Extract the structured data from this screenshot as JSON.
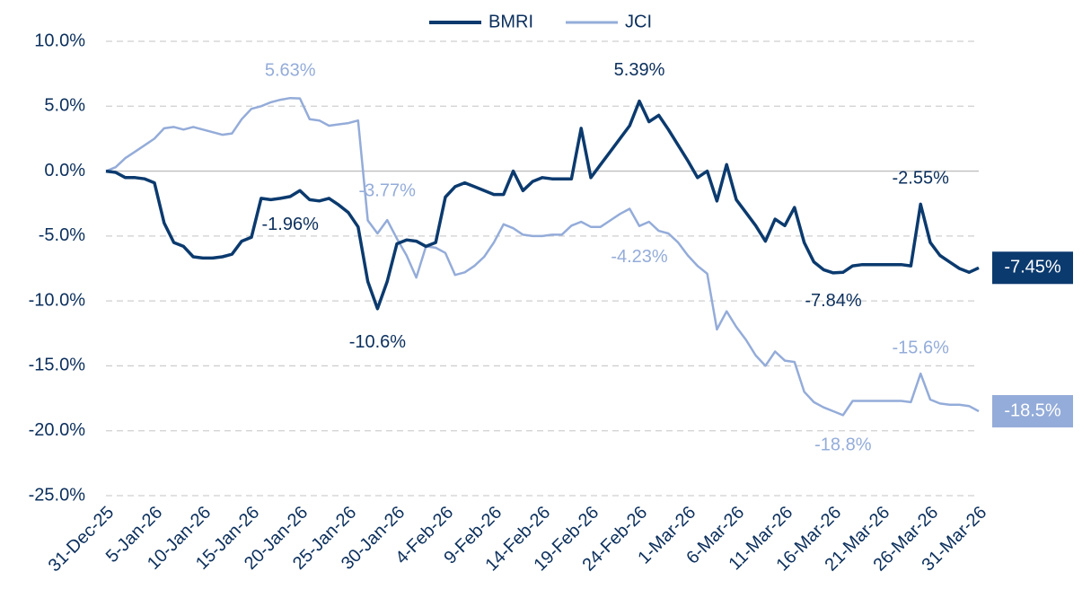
{
  "chart_data": {
    "type": "line",
    "categories": [
      "31-Dec-25",
      null,
      null,
      null,
      null,
      "5-Jan-26",
      null,
      null,
      null,
      null,
      "10-Jan-26",
      null,
      null,
      null,
      null,
      "15-Jan-26",
      null,
      null,
      null,
      null,
      "20-Jan-26",
      null,
      null,
      null,
      null,
      "25-Jan-26",
      null,
      null,
      null,
      null,
      "30-Jan-26",
      null,
      null,
      null,
      null,
      "4-Feb-26",
      null,
      null,
      null,
      null,
      "9-Feb-26",
      null,
      null,
      null,
      null,
      "14-Feb-26",
      null,
      null,
      null,
      null,
      "19-Feb-26",
      null,
      null,
      null,
      null,
      "24-Feb-26",
      null,
      null,
      null,
      null,
      "1-Mar-26",
      null,
      null,
      null,
      null,
      "6-Mar-26",
      null,
      null,
      null,
      null,
      "11-Mar-26",
      null,
      null,
      null,
      null,
      "16-Mar-26",
      null,
      null,
      null,
      null,
      "21-Mar-26",
      null,
      null,
      null,
      null,
      "26-Mar-26",
      null,
      null,
      null,
      null,
      "31-Mar-26"
    ],
    "series": [
      {
        "name": "BMRI",
        "color": "#0b3a6e",
        "values": [
          0,
          -0.1,
          -0.5,
          -0.5,
          -0.6,
          -0.9,
          -4.0,
          -5.5,
          -5.8,
          -6.6,
          -6.7,
          -6.7,
          -6.6,
          -6.4,
          -5.4,
          -5.1,
          -2.1,
          -2.2,
          -2.1,
          -1.96,
          -1.5,
          -2.2,
          -2.3,
          -2.1,
          -2.6,
          -3.2,
          -4.3,
          -8.5,
          -10.6,
          -8.5,
          -5.6,
          -5.3,
          -5.4,
          -5.8,
          -5.5,
          -2.0,
          -1.2,
          -0.9,
          -1.2,
          -1.5,
          -1.8,
          -1.8,
          0.0,
          -1.5,
          -0.8,
          -0.5,
          -0.6,
          -0.6,
          -0.6,
          3.3,
          -0.5,
          0.5,
          1.5,
          2.5,
          3.5,
          5.39,
          3.8,
          4.3,
          3.2,
          2.0,
          0.8,
          -0.5,
          0.0,
          -2.3,
          0.5,
          -2.2,
          -3.2,
          -4.2,
          -5.4,
          -3.7,
          -4.2,
          -2.8,
          -5.5,
          -7.0,
          -7.6,
          -7.84,
          -7.8,
          -7.3,
          -7.2,
          -7.2,
          -7.2,
          -7.2,
          -7.2,
          -7.3,
          -2.55,
          -5.5,
          -6.5,
          -7.0,
          -7.5,
          -7.8,
          -7.45
        ],
        "value_labels": [
          null,
          null,
          null,
          null,
          null,
          null,
          null,
          null,
          null,
          null,
          null,
          null,
          null,
          null,
          null,
          null,
          null,
          null,
          null,
          "-1.96%",
          null,
          null,
          null,
          null,
          null,
          null,
          null,
          null,
          "-10.6%",
          null,
          null,
          null,
          null,
          null,
          null,
          null,
          null,
          null,
          null,
          null,
          null,
          null,
          null,
          null,
          null,
          null,
          null,
          null,
          null,
          null,
          null,
          null,
          null,
          null,
          null,
          "5.39%",
          null,
          null,
          null,
          null,
          null,
          null,
          null,
          null,
          null,
          null,
          null,
          null,
          null,
          null,
          null,
          null,
          null,
          null,
          null,
          "-7.84%",
          null,
          null,
          null,
          null,
          null,
          null,
          null,
          null,
          "-2.55%",
          null,
          null,
          null,
          null,
          null,
          "-7.45%"
        ]
      },
      {
        "name": "JCI",
        "color": "#94acd9",
        "values": [
          0,
          0.3,
          1.0,
          1.5,
          2.0,
          2.5,
          3.3,
          3.4,
          3.2,
          3.4,
          3.2,
          3.0,
          2.8,
          2.9,
          4.0,
          4.8,
          5.0,
          5.3,
          5.5,
          5.63,
          5.6,
          4.0,
          3.9,
          3.5,
          3.6,
          3.7,
          3.9,
          -3.8,
          -4.8,
          -3.77,
          -5.2,
          -6.5,
          -8.2,
          -5.8,
          -5.9,
          -6.3,
          -8.0,
          -7.8,
          -7.3,
          -6.6,
          -5.5,
          -4.1,
          -4.4,
          -4.9,
          -5.0,
          -5.0,
          -4.9,
          -4.9,
          -4.2,
          -3.9,
          -4.3,
          -4.3,
          -3.8,
          -3.3,
          -2.9,
          -4.23,
          -3.9,
          -4.6,
          -4.8,
          -5.5,
          -6.5,
          -7.3,
          -7.9,
          -12.2,
          -10.8,
          -12.0,
          -13.0,
          -14.2,
          -15.0,
          -13.9,
          -14.6,
          -14.7,
          -17.0,
          -17.8,
          -18.2,
          -18.5,
          -18.8,
          -17.7,
          -17.7,
          -17.7,
          -17.7,
          -17.7,
          -17.7,
          -17.8,
          -15.6,
          -17.6,
          -17.9,
          -18.0,
          -18.0,
          -18.1,
          -18.5
        ],
        "value_labels": [
          null,
          null,
          null,
          null,
          null,
          null,
          null,
          null,
          null,
          null,
          null,
          null,
          null,
          null,
          null,
          null,
          null,
          null,
          null,
          "5.63%",
          null,
          null,
          null,
          null,
          null,
          null,
          null,
          null,
          null,
          "-3.77%",
          null,
          null,
          null,
          null,
          null,
          null,
          null,
          null,
          null,
          null,
          null,
          null,
          null,
          null,
          null,
          null,
          null,
          null,
          null,
          null,
          null,
          null,
          null,
          null,
          null,
          "-4.23%",
          null,
          null,
          null,
          null,
          null,
          null,
          null,
          null,
          null,
          null,
          null,
          null,
          null,
          null,
          null,
          null,
          null,
          null,
          null,
          null,
          "-18.8%",
          null,
          null,
          null,
          null,
          null,
          null,
          null,
          "-15.6%",
          null,
          null,
          null,
          null,
          null,
          "-18.5%"
        ]
      }
    ],
    "ylim": [
      -25,
      10
    ],
    "yticks": [
      {
        "value": -25,
        "label": "-25.0%"
      },
      {
        "value": -20,
        "label": "-20.0%"
      },
      {
        "value": -15,
        "label": "-15.0%"
      },
      {
        "value": -10,
        "label": "-10.0%"
      },
      {
        "value": -5,
        "label": "-5.0%"
      },
      {
        "value": 0,
        "label": "0.0%"
      },
      {
        "value": 5,
        "label": "5.0%"
      },
      {
        "value": 10,
        "label": "10.0%"
      }
    ],
    "grid": true,
    "legend": "top"
  }
}
